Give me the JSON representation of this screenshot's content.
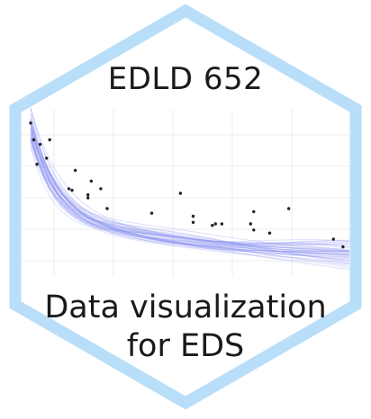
{
  "sticker": {
    "course_code": "EDLD 652",
    "subtitle_line1": "Data visualization",
    "subtitle_line2": "for EDS",
    "border_color": "#b9def9",
    "curve_color": "#8a8ff0",
    "point_color": "#222222",
    "grid_color": "#ececec"
  },
  "chart_data": {
    "type": "scatter",
    "title": "",
    "xlabel": "",
    "ylabel": "",
    "grid": true,
    "legend": "none",
    "xlim": [
      0,
      100
    ],
    "ylim": [
      0,
      100
    ],
    "x": [
      0,
      1,
      3,
      2,
      6,
      5,
      12,
      13,
      14,
      18,
      19,
      18,
      22,
      24,
      38,
      47,
      51,
      51,
      57,
      58,
      60,
      69,
      70,
      70,
      75,
      81,
      95,
      98
    ],
    "y": [
      96,
      85,
      82,
      69,
      85,
      73,
      53,
      52,
      65,
      49,
      58,
      47,
      53,
      40,
      37,
      50,
      31,
      35,
      29,
      30,
      30,
      30,
      38,
      26,
      24,
      40,
      20,
      15
    ],
    "smooth_fit": {
      "a": 68,
      "k": 9,
      "b": 22,
      "drop": 12,
      "n_bootstrap": 40
    }
  }
}
